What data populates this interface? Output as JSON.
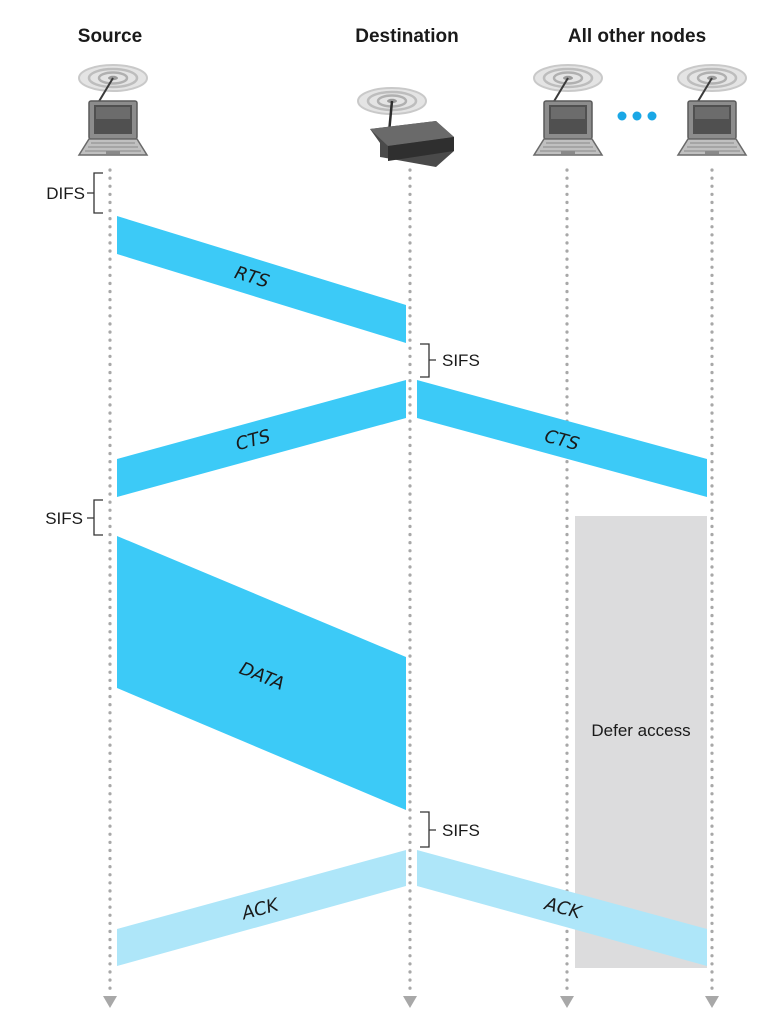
{
  "headers": {
    "source": "Source",
    "destination": "Destination",
    "others": "All other nodes"
  },
  "intervals": {
    "difs": "DIFS",
    "sifs_1": "SIFS",
    "sifs_2": "SIFS",
    "sifs_3": "SIFS"
  },
  "messages": {
    "rts": "RTS",
    "cts_to_source": "CTS",
    "cts_to_others": "CTS",
    "data": "DATA",
    "ack_to_source": "ACK",
    "ack_to_others": "ACK"
  },
  "defer": {
    "label": "Defer access"
  },
  "icons": {
    "source_node": "laptop-icon",
    "destination_node": "access-point-icon",
    "other_node_1": "laptop-icon",
    "other_node_2": "laptop-icon",
    "ellipsis": "ellipsis-dots-icon"
  },
  "colors": {
    "frame_dark": "#3ccaf7",
    "frame_light": "#aee6f9",
    "defer_region": "#dcdcdd",
    "lifeline": "#a8a8a8",
    "ellipsis_dots": "#1aa7e6"
  }
}
